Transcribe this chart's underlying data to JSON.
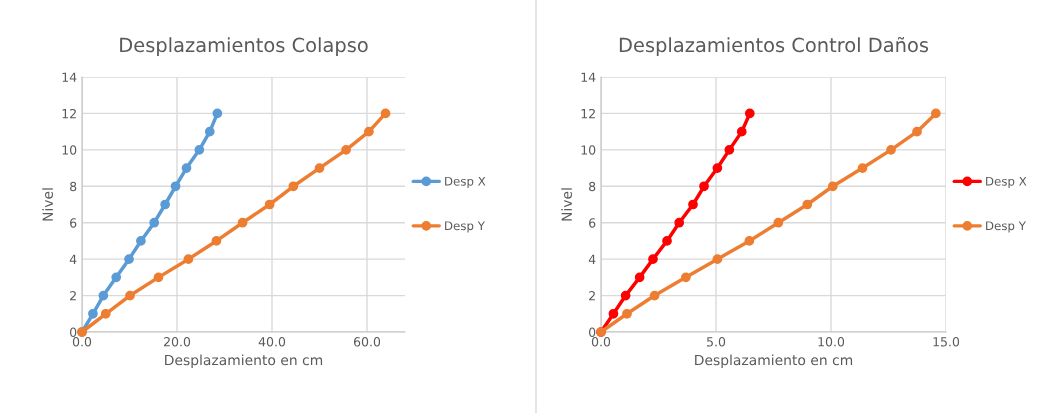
{
  "chart_data": [
    {
      "type": "line",
      "title": "Desplazamientos Colapso",
      "xlabel": "Desplazamiento en cm",
      "ylabel": "Nivel",
      "marker": "circle",
      "grid": true,
      "legend": "right",
      "xlim": [
        0,
        68
      ],
      "xticks": [
        {
          "value": 0,
          "label": "0.0"
        },
        {
          "value": 20,
          "label": "20.0"
        },
        {
          "value": 40,
          "label": "40.0"
        },
        {
          "value": 60,
          "label": "60.0"
        }
      ],
      "ylim": [
        0,
        14
      ],
      "yticks": [
        0,
        2,
        4,
        6,
        8,
        10,
        12,
        14
      ],
      "series": [
        {
          "name": "Desp X",
          "color": "#5b9bd5",
          "x": [
            0,
            2.3,
            4.5,
            7.2,
            9.9,
            12.4,
            15.2,
            17.5,
            19.7,
            22.0,
            24.7,
            26.9,
            28.5
          ],
          "values": [
            0,
            1,
            2,
            3,
            4,
            5,
            6,
            7,
            8,
            9,
            10,
            11,
            12
          ]
        },
        {
          "name": "Desp Y",
          "color": "#ed7d31",
          "x": [
            0,
            5.0,
            10.1,
            16.1,
            22.4,
            28.3,
            33.8,
            39.5,
            44.5,
            50.0,
            55.6,
            60.4,
            63.9
          ],
          "values": [
            0,
            1,
            2,
            3,
            4,
            5,
            6,
            7,
            8,
            9,
            10,
            11,
            12
          ]
        }
      ]
    },
    {
      "type": "line",
      "title": "Desplazamientos Control Daños",
      "xlabel": "Desplazamiento en cm",
      "ylabel": "Nivel",
      "marker": "circle",
      "grid": true,
      "legend": "right",
      "xlim": [
        0,
        15
      ],
      "xticks": [
        {
          "value": 0,
          "label": "0.0"
        },
        {
          "value": 5,
          "label": "5.0"
        },
        {
          "value": 10,
          "label": "10.0"
        },
        {
          "value": 15,
          "label": "15.0"
        }
      ],
      "ylim": [
        0,
        14
      ],
      "yticks": [
        0,
        2,
        4,
        6,
        8,
        10,
        12,
        14
      ],
      "series": [
        {
          "name": "Desp X",
          "color": "#ff0000",
          "x": [
            0,
            0.54,
            1.07,
            1.68,
            2.26,
            2.87,
            3.4,
            4.0,
            4.48,
            5.06,
            5.58,
            6.12,
            6.47
          ],
          "values": [
            0,
            1,
            2,
            3,
            4,
            5,
            6,
            7,
            8,
            9,
            10,
            11,
            12
          ]
        },
        {
          "name": "Desp Y",
          "color": "#ed7d31",
          "x": [
            0,
            1.13,
            2.33,
            3.69,
            5.06,
            6.45,
            7.71,
            8.97,
            10.08,
            11.37,
            12.61,
            13.74,
            14.56
          ],
          "values": [
            0,
            1,
            2,
            3,
            4,
            5,
            6,
            7,
            8,
            9,
            10,
            11,
            12
          ]
        }
      ]
    }
  ]
}
